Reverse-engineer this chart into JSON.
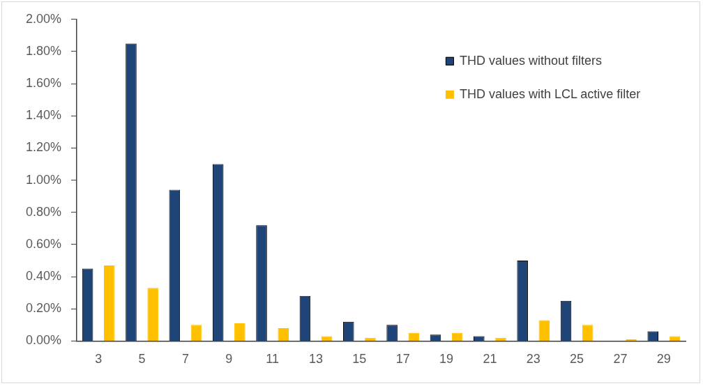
{
  "chart_data": {
    "type": "bar",
    "categories": [
      "3",
      "5",
      "7",
      "9",
      "11",
      "13",
      "15",
      "17",
      "19",
      "21",
      "23",
      "25",
      "27",
      "29"
    ],
    "series": [
      {
        "name": "THD values without filters",
        "color": "#1f4578",
        "values": [
          0.45,
          1.85,
          0.94,
          1.1,
          0.72,
          0.28,
          0.12,
          0.1,
          0.04,
          0.03,
          0.5,
          0.25,
          null,
          0.06
        ]
      },
      {
        "name": "THD values with LCL active filter",
        "color": "#ffc000",
        "values": [
          0.47,
          0.33,
          0.1,
          0.11,
          0.08,
          0.03,
          0.02,
          0.05,
          0.05,
          0.02,
          0.13,
          0.1,
          0.01,
          0.03
        ]
      }
    ],
    "ylim": [
      0,
      2
    ],
    "yticks": [
      {
        "value": 0,
        "label": "0.00%"
      },
      {
        "value": 0.2,
        "label": "0.20%"
      },
      {
        "value": 0.4,
        "label": "0.40%"
      },
      {
        "value": 0.6,
        "label": "0.60%"
      },
      {
        "value": 0.8,
        "label": "0.80%"
      },
      {
        "value": 1,
        "label": "1.00%"
      },
      {
        "value": 1.2,
        "label": "1.20%"
      },
      {
        "value": 1.4,
        "label": "1.40%"
      },
      {
        "value": 1.6,
        "label": "1.60%"
      },
      {
        "value": 1.8,
        "label": "1.80%"
      },
      {
        "value": 2,
        "label": "2.00%"
      }
    ],
    "grid": false,
    "legend": "top right"
  }
}
